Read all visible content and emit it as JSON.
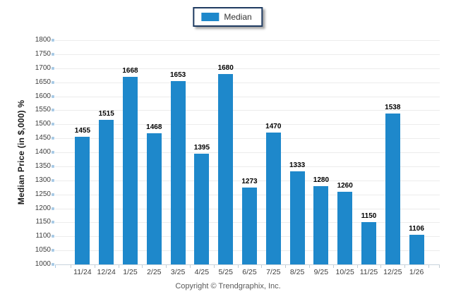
{
  "legend": {
    "items": [
      {
        "label": "Median",
        "color": "#1e88cb"
      }
    ]
  },
  "footer": {
    "copyright": "Copyright © Trendgraphix, Inc."
  },
  "chart_data": {
    "type": "bar",
    "title": "",
    "series_name": "Median",
    "categories": [
      "11/24",
      "12/24",
      "1/25",
      "2/25",
      "3/25",
      "4/25",
      "5/25",
      "6/25",
      "7/25",
      "8/25",
      "9/25",
      "10/25",
      "11/25",
      "12/25",
      "1/26"
    ],
    "values": [
      1455,
      1515,
      1668,
      1468,
      1653,
      1395,
      1680,
      1273,
      1470,
      1333,
      1280,
      1260,
      1150,
      1538,
      1106
    ],
    "ylabel": "Median Price (in $,000) %",
    "ylim": [
      1000,
      1800
    ],
    "ytick_step": 50,
    "grid": true,
    "value_labels": true,
    "legend_position": "top-center"
  },
  "colors": {
    "bar": "#1e88cb",
    "legend_border": "#1f3b61",
    "gridline": "#ececec",
    "axis_line": "#c7d3dc",
    "tick": "#a9cbe6",
    "value_label": "#000000",
    "footer_text": "#595959"
  }
}
